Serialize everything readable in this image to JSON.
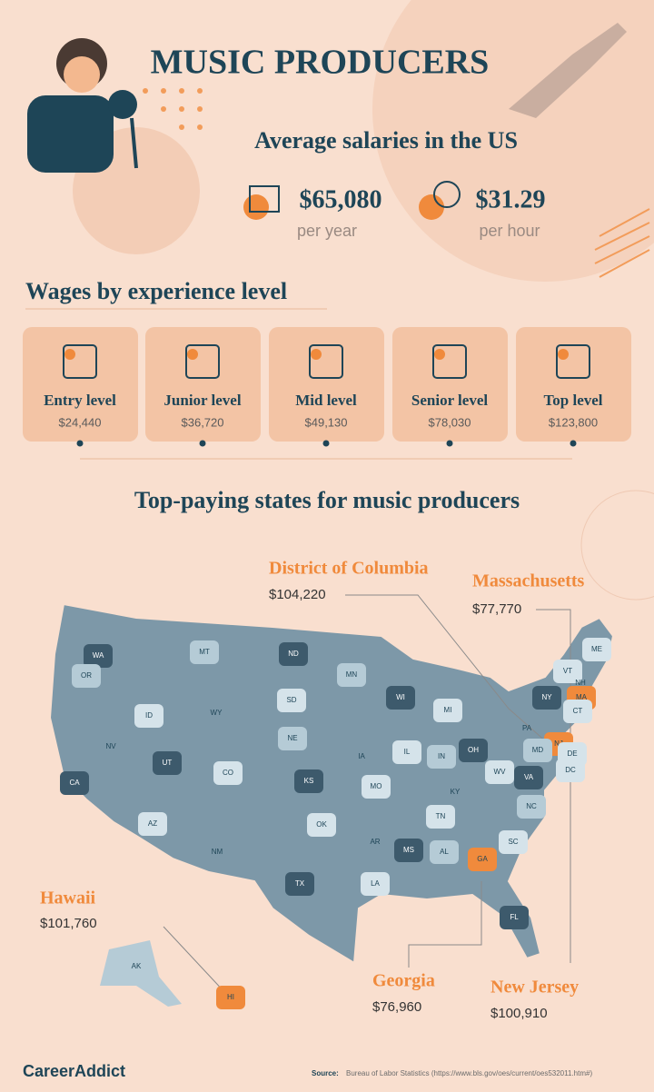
{
  "header": {
    "title": "MUSIC PRODUCERS",
    "subtitle": "Average salaries in the US"
  },
  "averages": [
    {
      "value": "$65,080",
      "unit": "per year"
    },
    {
      "value": "$31.29",
      "unit": "per hour"
    }
  ],
  "experience": {
    "title": "Wages by experience level",
    "levels": [
      {
        "label": "Entry level",
        "salary": "$24,440"
      },
      {
        "label": "Junior level",
        "salary": "$36,720"
      },
      {
        "label": "Mid level",
        "salary": "$49,130"
      },
      {
        "label": "Senior level",
        "salary": "$78,030"
      },
      {
        "label": "Top level",
        "salary": "$123,800"
      }
    ]
  },
  "map": {
    "title": "Top-paying states for music producers",
    "states": [
      "WA",
      "OR",
      "CA",
      "ID",
      "NV",
      "MT",
      "WY",
      "UT",
      "AZ",
      "CO",
      "NM",
      "ND",
      "SD",
      "NE",
      "KS",
      "OK",
      "TX",
      "MN",
      "IA",
      "MO",
      "AR",
      "LA",
      "WI",
      "IL",
      "MI",
      "IN",
      "OH",
      "KY",
      "TN",
      "MS",
      "AL",
      "GA",
      "FL",
      "SC",
      "NC",
      "VA",
      "WV",
      "PA",
      "NY",
      "VT",
      "NH",
      "ME",
      "MA",
      "CT",
      "NJ",
      "DE",
      "MD",
      "DC",
      "AK",
      "HI"
    ],
    "callouts": [
      {
        "state": "District of Columbia",
        "salary": "$104,220"
      },
      {
        "state": "Massachusetts",
        "salary": "$77,770"
      },
      {
        "state": "Hawaii",
        "salary": "$101,760"
      },
      {
        "state": "Georgia",
        "salary": "$76,960"
      },
      {
        "state": "New Jersey",
        "salary": "$100,910"
      }
    ]
  },
  "footer": {
    "brand": "CareerAddict",
    "source_label": "Source:",
    "source": "Bureau of Labor Statistics (https://www.bls.gov/oes/current/oes532011.htm#)"
  }
}
